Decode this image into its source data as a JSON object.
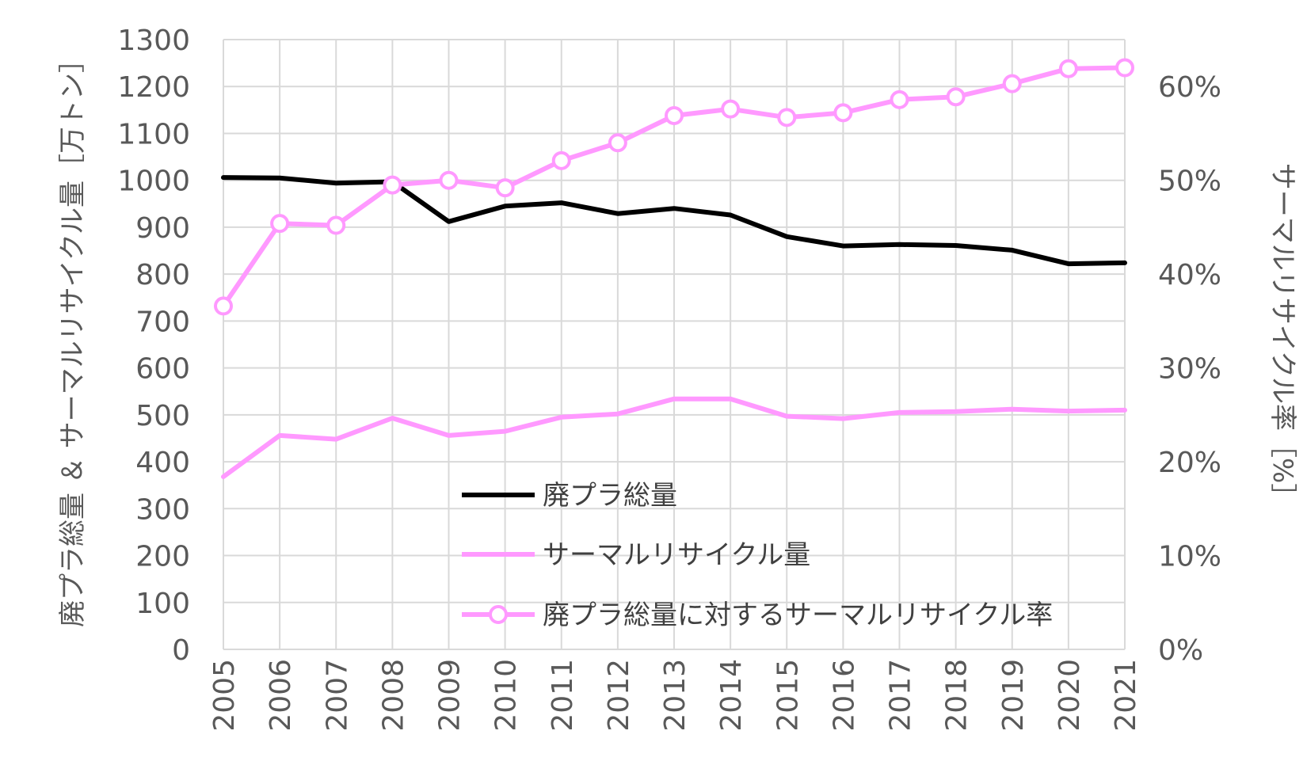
{
  "chart_data": {
    "type": "line",
    "x": [
      "2005",
      "2006",
      "2007",
      "2008",
      "2009",
      "2010",
      "2011",
      "2012",
      "2013",
      "2014",
      "2015",
      "2016",
      "2017",
      "2018",
      "2019",
      "2020",
      "2021"
    ],
    "series": [
      {
        "name": "廃プラ総量",
        "axis": "left",
        "color": "#000000",
        "marker": "none",
        "values": [
          1006,
          1005,
          994,
          997,
          912,
          945,
          952,
          929,
          940,
          926,
          880,
          860,
          863,
          861,
          851,
          822,
          824
        ]
      },
      {
        "name": "サーマルリサイクル量",
        "axis": "left",
        "color": "#ff99ff",
        "marker": "none",
        "values": [
          368,
          456,
          448,
          493,
          456,
          465,
          495,
          502,
          534,
          534,
          497,
          492,
          505,
          507,
          512,
          508,
          510
        ]
      },
      {
        "name": "廃プラ総量に対するサーマルリサイクル率",
        "axis": "right",
        "color": "#ff99ff",
        "marker": "circle-open",
        "values": [
          36.6,
          45.4,
          45.2,
          49.5,
          50.0,
          49.2,
          52.1,
          54.0,
          56.9,
          57.6,
          56.7,
          57.2,
          58.6,
          58.9,
          60.3,
          61.9,
          62.0
        ]
      }
    ],
    "y_left": {
      "label": "廃プラ総量 ＆ サーマルリサイクル量［万トン］",
      "min": 0,
      "max": 1300,
      "step": 100,
      "ticks": [
        "0",
        "100",
        "200",
        "300",
        "400",
        "500",
        "600",
        "700",
        "800",
        "900",
        "1000",
        "1100",
        "1200",
        "1300"
      ]
    },
    "y_right": {
      "label": "サーマルリサイクル率［%］",
      "min": 0,
      "max": 65,
      "step": 10,
      "ticks": [
        "0%",
        "10%",
        "20%",
        "30%",
        "40%",
        "50%",
        "60%"
      ]
    },
    "grid": true,
    "legend": "bottom-center-inside",
    "colors": {
      "grid": "#d9d9d9",
      "axis_text": "#595959",
      "black_series": "#000000",
      "pink_series": "#ff99ff"
    }
  }
}
